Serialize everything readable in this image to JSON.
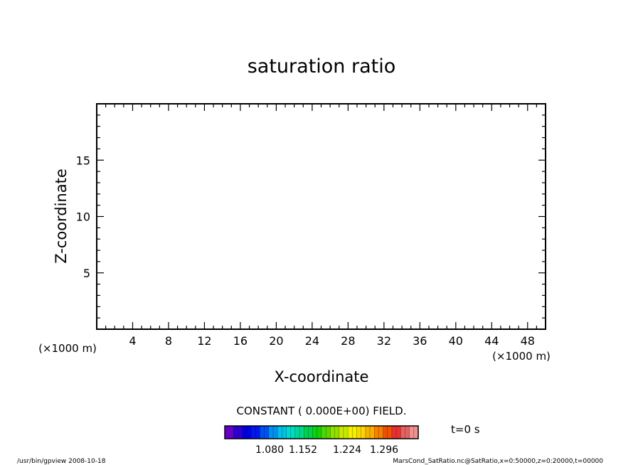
{
  "chart_data": {
    "type": "heatmap",
    "title": "saturation ratio",
    "xlabel": "X-coordinate",
    "ylabel": "Z-coordinate",
    "x_unit": "(×1000 m)",
    "z_unit": "(×1000 m)",
    "xlim": [
      0,
      50
    ],
    "ylim": [
      0,
      20
    ],
    "x_ticks": [
      4,
      8,
      12,
      16,
      20,
      24,
      28,
      32,
      36,
      40,
      44,
      48
    ],
    "y_ticks": [
      5,
      10,
      15
    ],
    "field_note": "CONSTANT ( 0.000E+00) FIELD.",
    "time_label": "t=0 s",
    "colorbar": {
      "labels": [
        "1.080",
        "1.152",
        "1.224",
        "1.296"
      ],
      "colors": [
        "#6a00c8",
        "#3000d0",
        "#0000e0",
        "#0018f0",
        "#0050f0",
        "#0090f0",
        "#00c0e8",
        "#00d8c8",
        "#00d890",
        "#00d050",
        "#10d010",
        "#50d800",
        "#90e000",
        "#c8e800",
        "#f0f000",
        "#f8d800",
        "#f8b000",
        "#f88000",
        "#f05000",
        "#e83030",
        "#e86060",
        "#f09090"
      ]
    }
  },
  "footer": {
    "left": "/usr/bin/gpview   2008-10-18",
    "right": "MarsCond_SatRatio.nc@SatRatio,x=0:50000,z=0:20000,t=00000"
  }
}
